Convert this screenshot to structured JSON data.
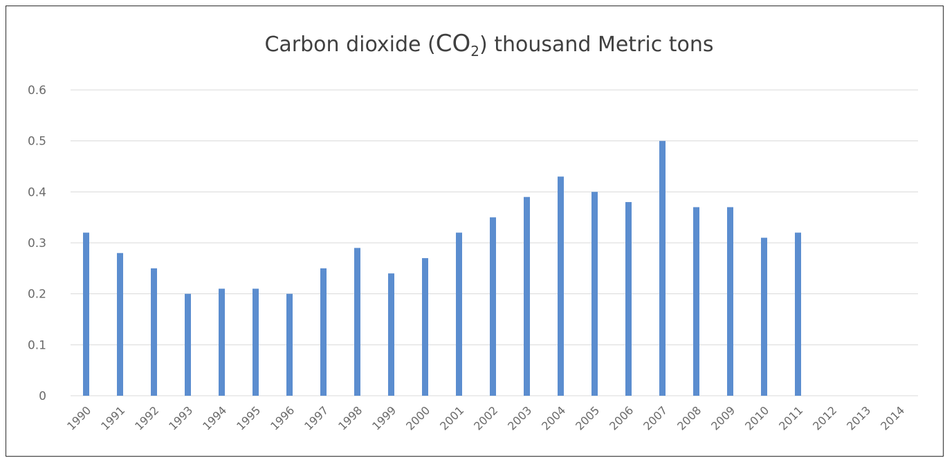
{
  "chart_data": {
    "type": "bar",
    "title_prefix": "Carbon dioxide (",
    "title_chem": "CO",
    "title_subscript": "2",
    "title_suffix": ") thousand Metric tons",
    "categories": [
      "1990",
      "1991",
      "1992",
      "1993",
      "1994",
      "1995",
      "1996",
      "1997",
      "1998",
      "1999",
      "2000",
      "2001",
      "2002",
      "2003",
      "2004",
      "2005",
      "2006",
      "2007",
      "2008",
      "2009",
      "2010",
      "2011",
      "2012",
      "2013",
      "2014"
    ],
    "values": [
      0.32,
      0.28,
      0.25,
      0.2,
      0.21,
      0.21,
      0.2,
      0.25,
      0.29,
      0.24,
      0.27,
      0.32,
      0.35,
      0.39,
      0.43,
      0.4,
      0.38,
      0.5,
      0.37,
      0.37,
      0.31,
      0.32,
      null,
      null,
      null
    ],
    "ylim": [
      0,
      0.6
    ],
    "yticks": [
      "0",
      "0.1",
      "0.2",
      "0.3",
      "0.4",
      "0.5",
      "0.6"
    ],
    "grid": true,
    "bar_color": "#5b8dcf",
    "grid_color": "#d9d9d9",
    "text_color": "#6a6a6a"
  }
}
